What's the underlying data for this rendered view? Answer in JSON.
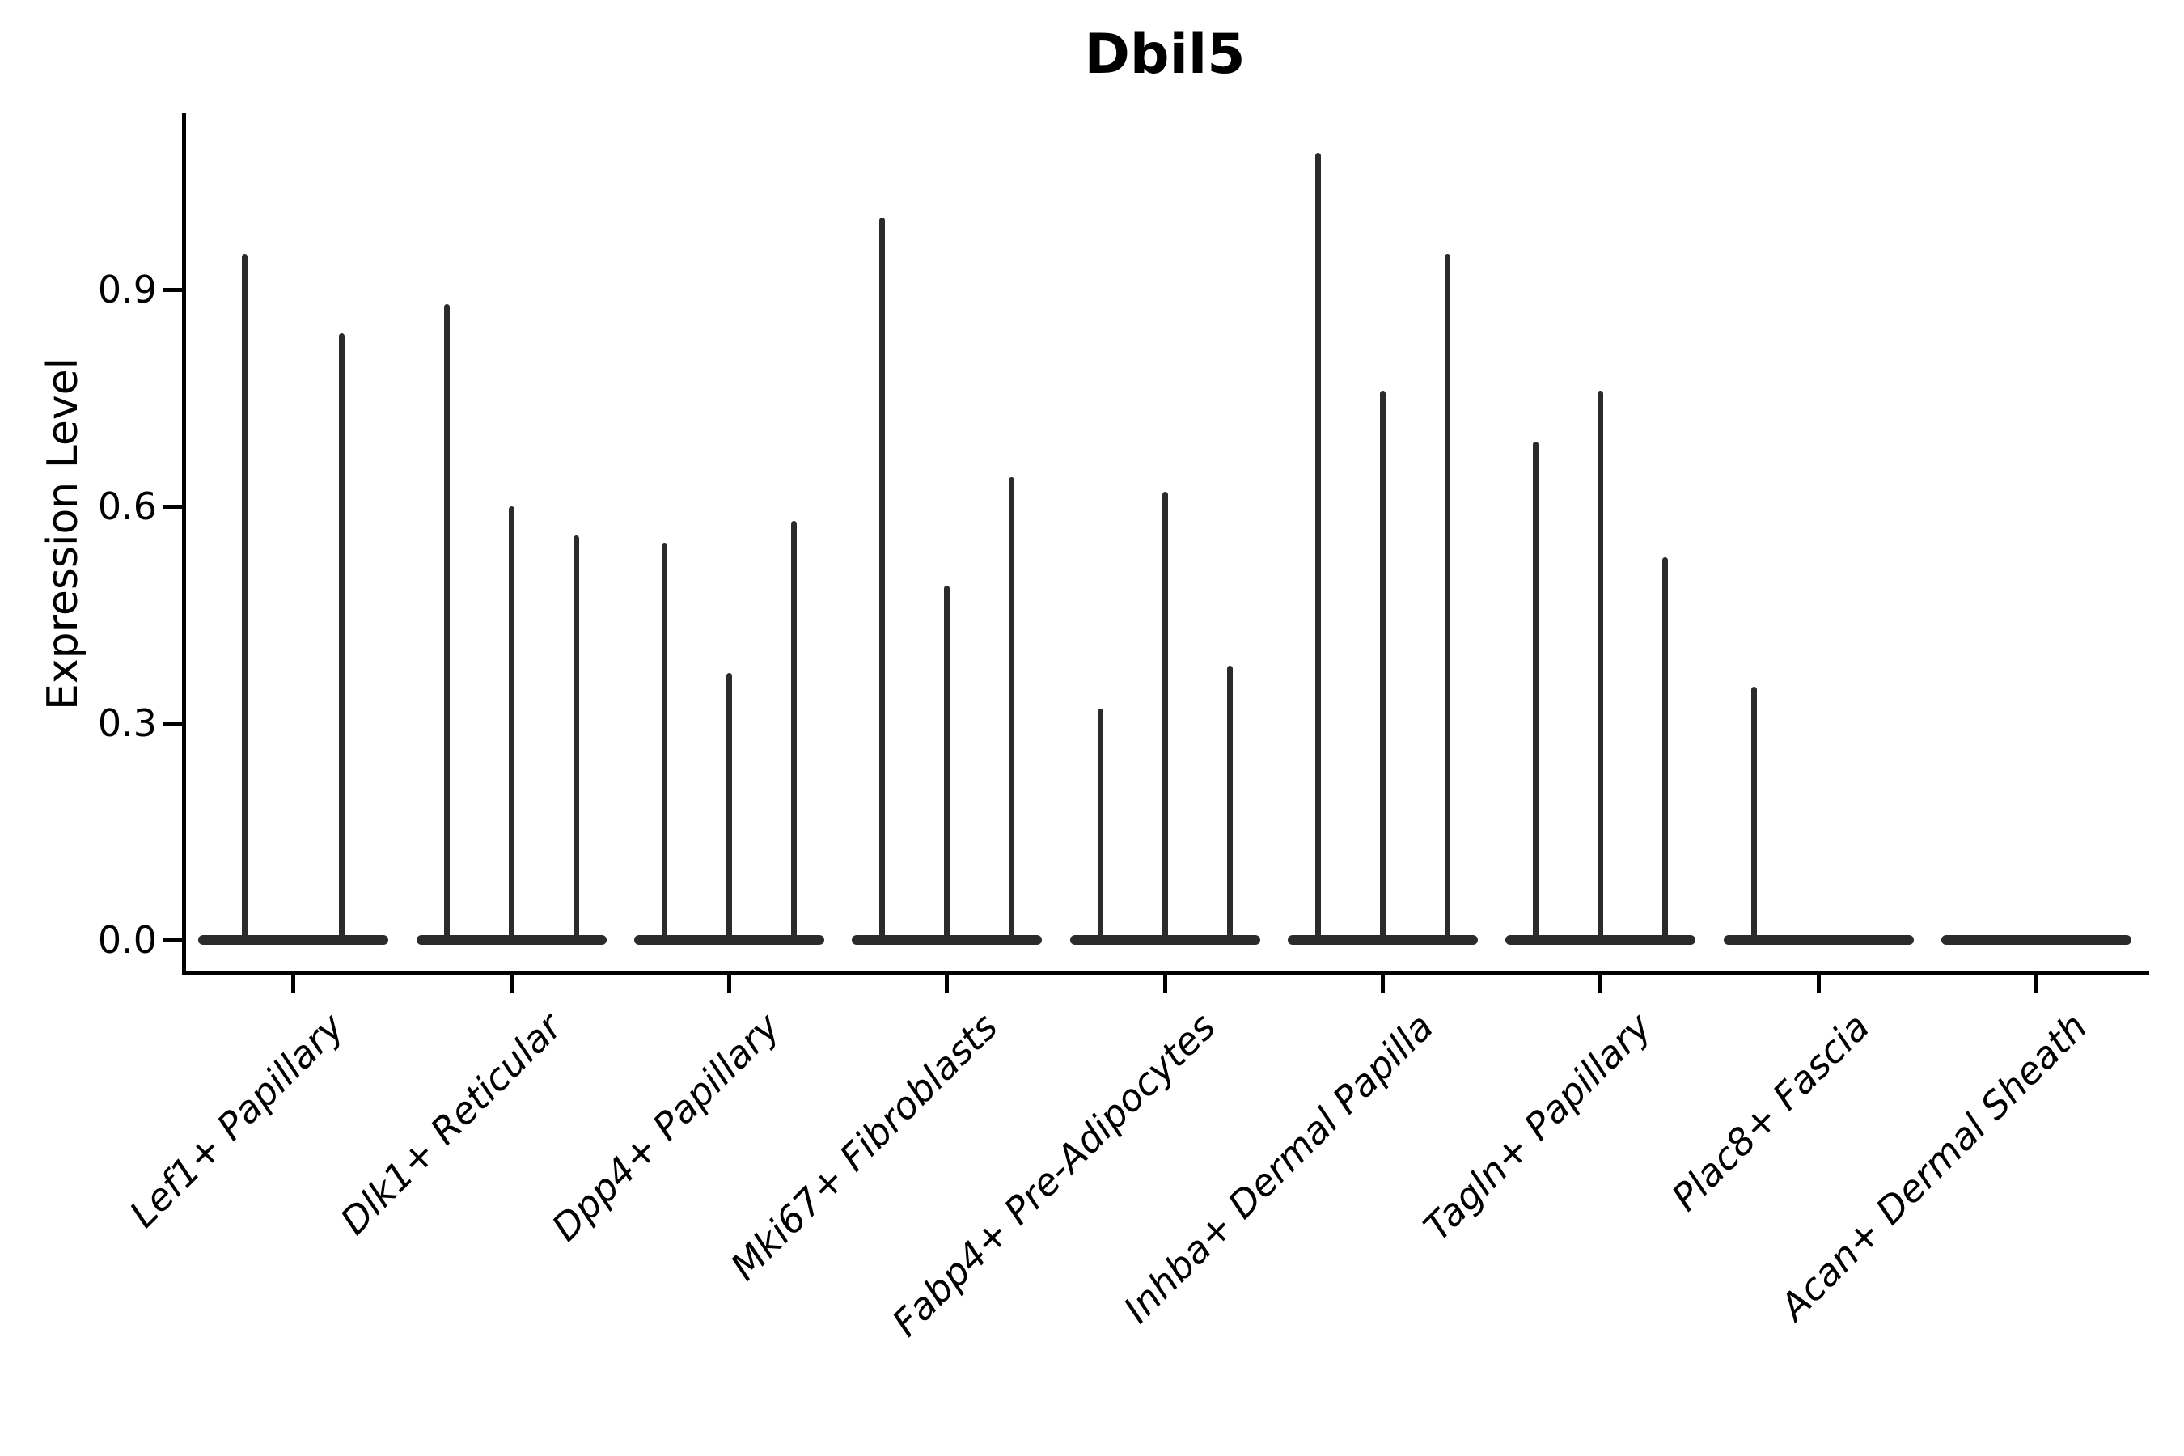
{
  "title": "Dbil5",
  "y_axis": {
    "label": "Expression Level",
    "tick_labels": [
      "0.0",
      "0.3",
      "0.6",
      "0.9"
    ]
  },
  "chart_data": {
    "type": "violin",
    "title": "Dbil5",
    "xlabel": "",
    "ylabel": "Expression Level",
    "ylim": [
      -0.043,
      1.14
    ],
    "yticks": [
      0.0,
      0.3,
      0.6,
      0.9
    ],
    "grid": false,
    "legend": false,
    "line_color": "#2b2b2b",
    "axis_color": "#000000",
    "background_color": "#ffffff",
    "categories": [
      "Lef1+ Papillary",
      "Dlk1+ Reticular",
      "Dpp4+ Papillary",
      "Mki67+ Fibroblasts",
      "Fabp4+ Pre-Adipocytes",
      "Inhba+ Dermal Papilla",
      "Tagln+ Papillary",
      "Plac8+ Fascia",
      "Acan+ Dermal Sheath"
    ],
    "series": [
      {
        "category": "Lef1+ Papillary",
        "violin_max_expression": [
          0.95,
          0.84
        ]
      },
      {
        "category": "Dlk1+ Reticular",
        "violin_max_expression": [
          0.88,
          0.6,
          0.56
        ]
      },
      {
        "category": "Dpp4+ Papillary",
        "violin_max_expression": [
          0.55,
          0.37,
          0.58
        ]
      },
      {
        "category": "Mki67+ Fibroblasts",
        "violin_max_expression": [
          1.0,
          0.49,
          0.64
        ]
      },
      {
        "category": "Fabp4+ Pre-Adipocytes",
        "violin_max_expression": [
          0.32,
          0.62,
          0.38
        ]
      },
      {
        "category": "Inhba+ Dermal Papilla",
        "violin_max_expression": [
          1.09,
          0.76,
          0.95
        ]
      },
      {
        "category": "Tagln+ Papillary",
        "violin_max_expression": [
          0.69,
          0.76,
          0.53
        ]
      },
      {
        "category": "Plac8+ Fascia",
        "violin_max_expression": [
          0.35,
          0.0,
          0.0
        ]
      },
      {
        "category": "Acan+ Dermal Sheath",
        "violin_max_expression": [
          0.0,
          0.0,
          0.0
        ]
      }
    ]
  }
}
